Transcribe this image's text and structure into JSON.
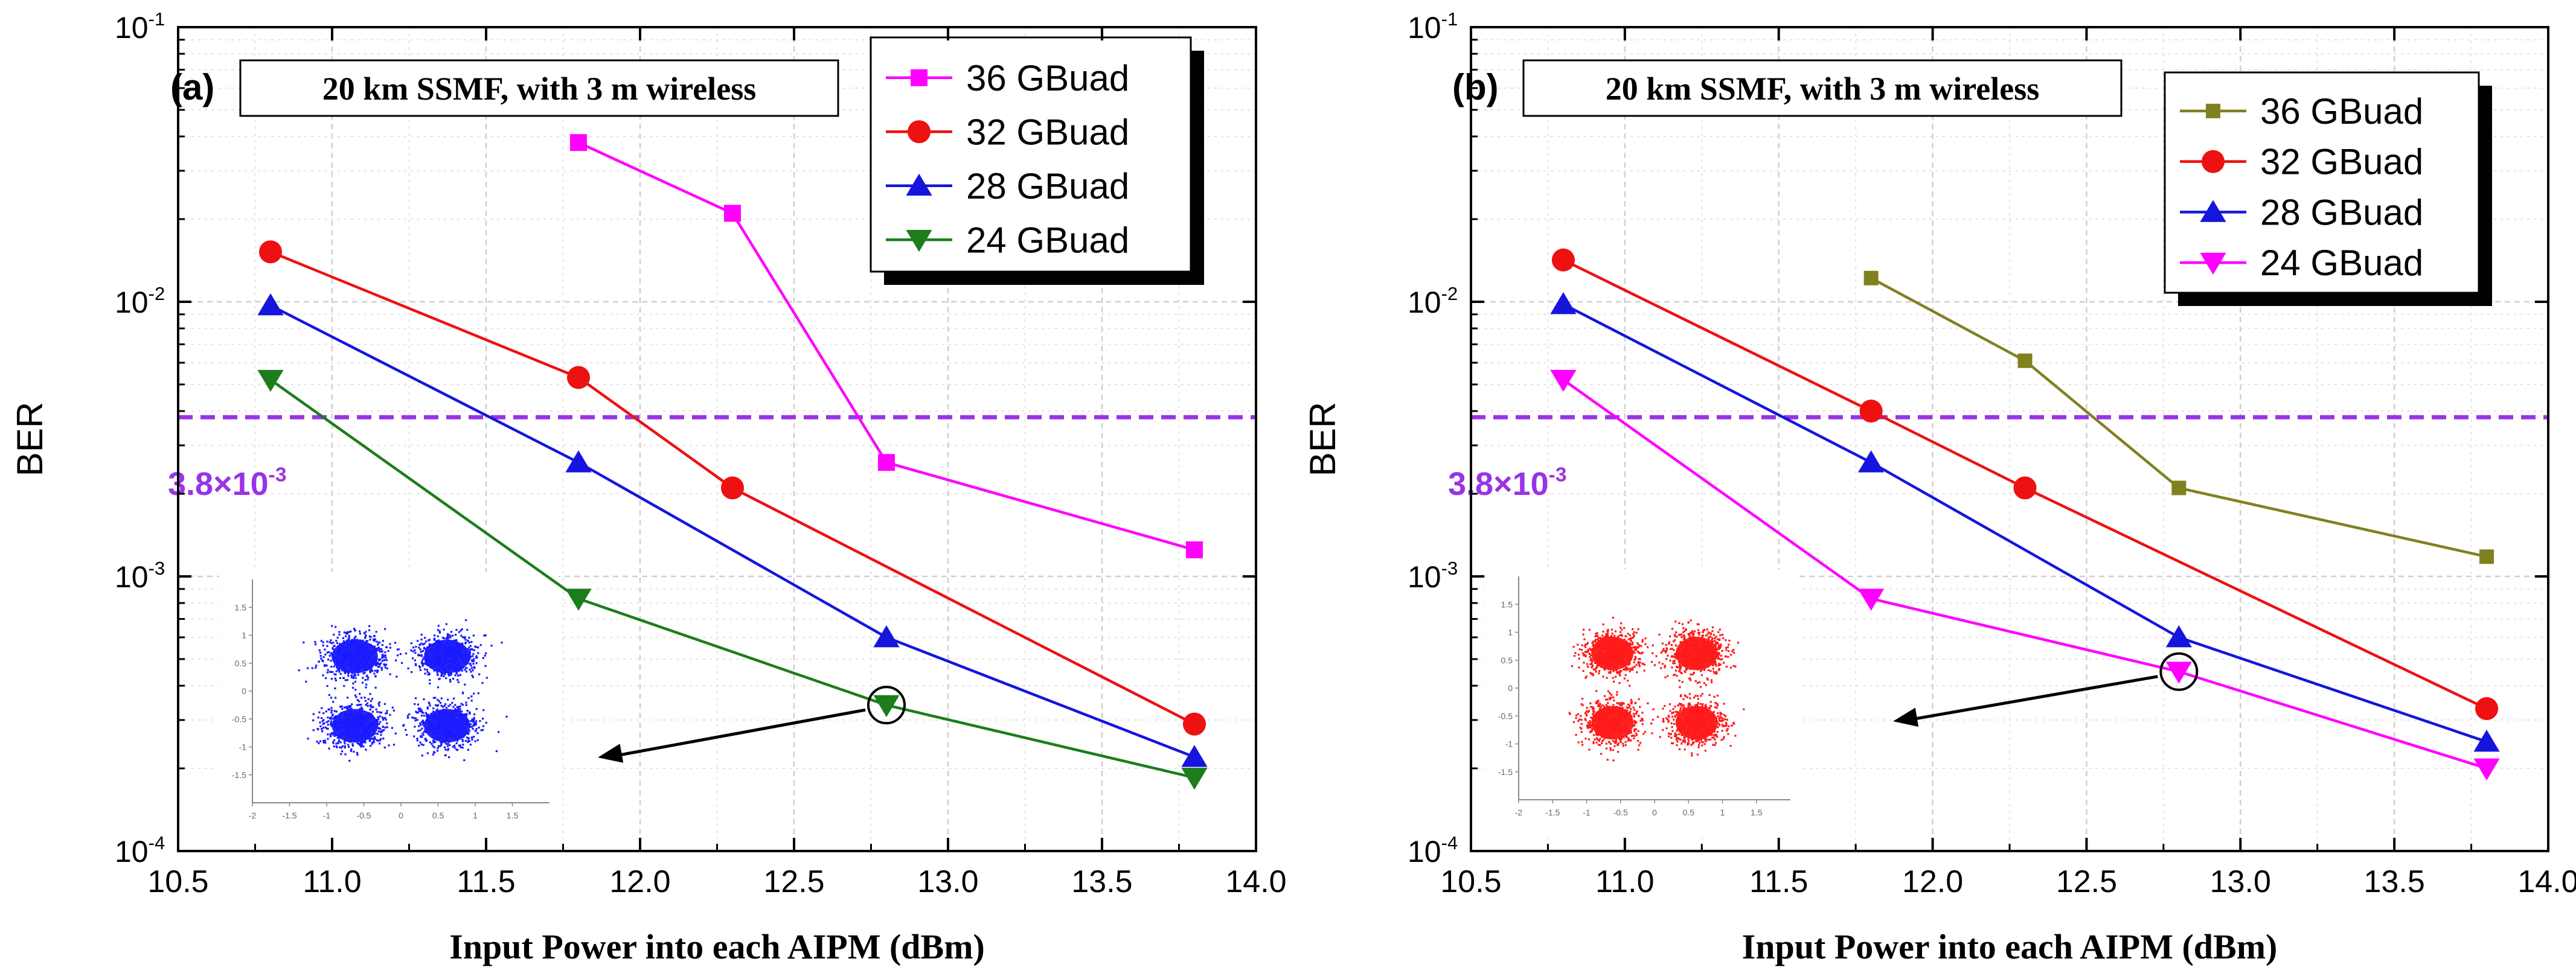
{
  "chart_data": [
    {
      "panel_label": "(a)",
      "type": "line",
      "yscale": "log",
      "annotation_box": "20 km SSMF, with 3 m wireless",
      "xlabel": "Input Power into each AIPM (dBm)",
      "ylabel": "BER",
      "xlim": [
        10.5,
        14.0
      ],
      "xticks": [
        "10.5",
        "11.0",
        "11.5",
        "12.0",
        "12.5",
        "13.0",
        "13.5",
        "14.0"
      ],
      "ylim": [
        0.0001,
        0.1
      ],
      "yticks": [
        {
          "base": "10",
          "exp": "-4",
          "value": 0.0001
        },
        {
          "base": "10",
          "exp": "-3",
          "value": 0.001
        },
        {
          "base": "10",
          "exp": "-2",
          "value": 0.01
        },
        {
          "base": "10",
          "exp": "-1",
          "value": 0.1
        }
      ],
      "grid": true,
      "legend_position": "top-right",
      "threshold": {
        "value": 0.0038,
        "label_base": "3.8×10",
        "label_exp": "-3",
        "color": "#9933e6"
      },
      "series": [
        {
          "name": "36 GBuad",
          "color": "#ff00ff",
          "marker": "square",
          "x": [
            11.8,
            12.3,
            12.8,
            13.8
          ],
          "values": [
            0.038,
            0.021,
            0.0026,
            0.00125
          ]
        },
        {
          "name": "32 GBuad",
          "color": "#ee1111",
          "marker": "circle",
          "x": [
            10.8,
            11.8,
            12.3,
            13.8
          ],
          "values": [
            0.0152,
            0.0053,
            0.0021,
            0.00029
          ]
        },
        {
          "name": "28 GBuad",
          "color": "#1515dd",
          "marker": "triangle-up",
          "x": [
            10.8,
            11.8,
            12.8,
            13.8
          ],
          "values": [
            0.0097,
            0.0026,
            0.0006,
            0.00022
          ]
        },
        {
          "name": "24 GBuad",
          "color": "#1b7d1b",
          "marker": "triangle-down",
          "x": [
            10.8,
            11.8,
            12.8,
            13.8
          ],
          "values": [
            0.0052,
            0.00083,
            0.00034,
            0.000185
          ]
        }
      ],
      "highlight": {
        "x": 12.8,
        "value": 0.00034
      },
      "inset": {
        "color": "#1a1aff",
        "x_ticks": [
          "-2",
          "-1.5",
          "-1",
          "-0.5",
          "0",
          "0.5",
          "1",
          "1.5"
        ],
        "y_ticks": [
          "1.5",
          "1",
          "0.5",
          "0",
          "-0.5",
          "-1",
          "-1.5"
        ]
      }
    },
    {
      "panel_label": "(b)",
      "type": "line",
      "yscale": "log",
      "annotation_box": "20 km SSMF, with 3 m wireless",
      "xlabel": "Input Power into each AIPM (dBm)",
      "ylabel": "BER",
      "xlim": [
        10.5,
        14.0
      ],
      "xticks": [
        "10.5",
        "11.0",
        "11.5",
        "12.0",
        "12.5",
        "13.0",
        "13.5",
        "14.0"
      ],
      "ylim": [
        0.0001,
        0.1
      ],
      "yticks": [
        {
          "base": "10",
          "exp": "-4",
          "value": 0.0001
        },
        {
          "base": "10",
          "exp": "-3",
          "value": 0.001
        },
        {
          "base": "10",
          "exp": "-2",
          "value": 0.01
        },
        {
          "base": "10",
          "exp": "-1",
          "value": 0.1
        }
      ],
      "grid": true,
      "legend_position": "top-right",
      "threshold": {
        "value": 0.0038,
        "label_base": "3.8×10",
        "label_exp": "-3",
        "color": "#9933e6"
      },
      "series": [
        {
          "name": "36 GBuad",
          "color": "#808020",
          "marker": "square",
          "x": [
            11.8,
            12.3,
            12.8,
            13.8
          ],
          "values": [
            0.0122,
            0.0061,
            0.0021,
            0.00118
          ]
        },
        {
          "name": "32 GBuad",
          "color": "#ee1111",
          "marker": "circle",
          "x": [
            10.8,
            11.8,
            12.3,
            13.8
          ],
          "values": [
            0.0142,
            0.004,
            0.0021,
            0.00033
          ]
        },
        {
          "name": "28 GBuad",
          "color": "#1515dd",
          "marker": "triangle-up",
          "x": [
            10.8,
            11.8,
            12.8,
            13.8
          ],
          "values": [
            0.0098,
            0.0026,
            0.0006,
            0.00025
          ]
        },
        {
          "name": "24 GBuad",
          "color": "#ff00ff",
          "marker": "triangle-down",
          "x": [
            10.8,
            11.8,
            12.8,
            13.8
          ],
          "values": [
            0.0052,
            0.00083,
            0.00045,
            0.0002
          ]
        }
      ],
      "highlight": {
        "x": 12.8,
        "value": 0.00045
      },
      "inset": {
        "color": "#ff1a1a",
        "x_ticks": [
          "-2",
          "-1.5",
          "-1",
          "-0.5",
          "0",
          "0.5",
          "1",
          "1.5"
        ],
        "y_ticks": [
          "1.5",
          "1",
          "0.5",
          "0",
          "-0.5",
          "-1",
          "-1.5"
        ]
      }
    }
  ]
}
